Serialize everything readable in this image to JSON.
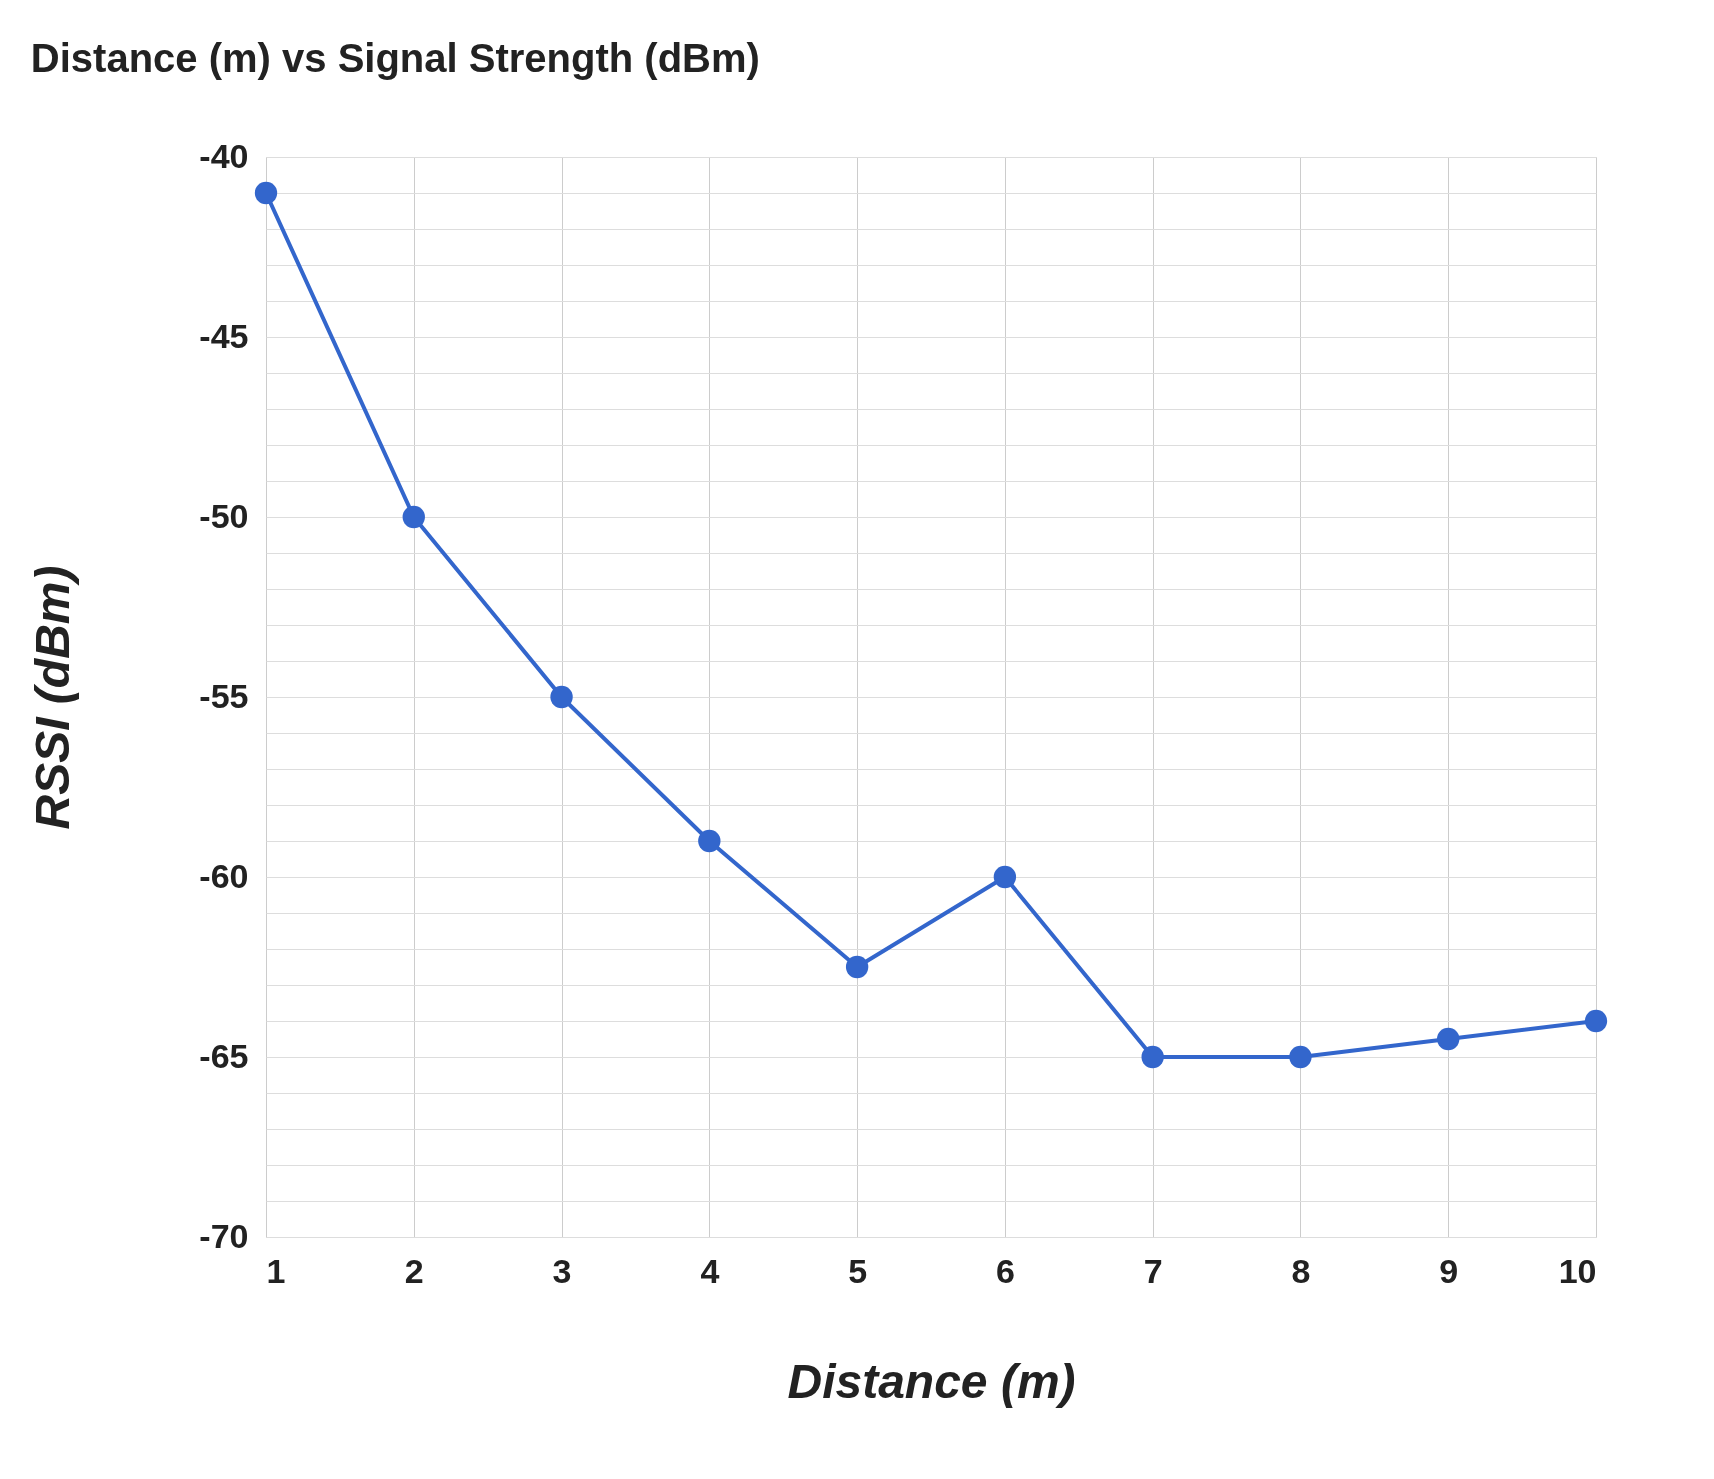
{
  "chart_data": {
    "type": "line",
    "title": "Distance (m) vs Signal Strength (dBm)",
    "xlabel": "Distance (m)",
    "ylabel": "RSSI (dBm)",
    "x": [
      1,
      2,
      3,
      4,
      5,
      6,
      7,
      8,
      9,
      10
    ],
    "series": [
      {
        "color": "#3366cc",
        "values": [
          -41,
          -50,
          -55,
          -59,
          -62.5,
          -60,
          -65,
          -65,
          -64.5,
          -64
        ]
      }
    ],
    "xlim": [
      1,
      10
    ],
    "xticks": [
      1,
      2,
      3,
      4,
      5,
      6,
      7,
      8,
      9,
      10
    ],
    "ylim": [
      -70,
      -40
    ],
    "yticks": [
      -70,
      {
        "value": -69,
        "label": null
      },
      {
        "value": -68,
        "label": null
      },
      {
        "value": -67,
        "label": null
      },
      {
        "value": -66,
        "label": null
      },
      -65,
      {
        "value": -64,
        "label": null
      },
      {
        "value": -63,
        "label": null
      },
      {
        "value": -62,
        "label": null
      },
      {
        "value": -61,
        "label": null
      },
      -60,
      {
        "value": -59,
        "label": null
      },
      {
        "value": -58,
        "label": null
      },
      {
        "value": -57,
        "label": null
      },
      {
        "value": -56,
        "label": null
      },
      -55,
      {
        "value": -54,
        "label": null
      },
      {
        "value": -53,
        "label": null
      },
      {
        "value": -52,
        "label": null
      },
      {
        "value": -51,
        "label": null
      },
      -50,
      {
        "value": -49,
        "label": null
      },
      {
        "value": -48,
        "label": null
      },
      {
        "value": -47,
        "label": null
      },
      {
        "value": -46,
        "label": null
      },
      -45,
      {
        "value": -44,
        "label": null
      },
      {
        "value": -43,
        "label": null
      },
      {
        "value": -42,
        "label": null
      },
      {
        "value": -41,
        "label": null
      },
      -40
    ],
    "grid": true,
    "marker": "circle",
    "line_style": "solid",
    "legend": false
  }
}
